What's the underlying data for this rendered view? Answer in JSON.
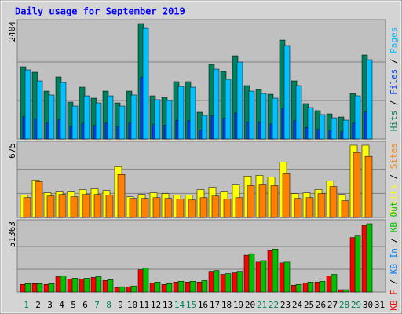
{
  "chart_data": {
    "type": "bar",
    "title": "Daily usage for September 2019",
    "categories": [
      "1",
      "2",
      "3",
      "4",
      "5",
      "6",
      "7",
      "8",
      "9",
      "10",
      "11",
      "12",
      "13",
      "14",
      "15",
      "16",
      "17",
      "18",
      "19",
      "20",
      "21",
      "22",
      "23",
      "24",
      "25",
      "26",
      "27",
      "28",
      "29",
      "30",
      "31"
    ],
    "category_colors": [
      "#00805c",
      "#000000",
      "#000000",
      "#000000",
      "#000000",
      "#000000",
      "#00805c",
      "#00805c",
      "#000000",
      "#000000",
      "#000000",
      "#000000",
      "#000000",
      "#00805c",
      "#00805c",
      "#000000",
      "#000000",
      "#000000",
      "#000000",
      "#000000",
      "#00805c",
      "#00805c",
      "#000000",
      "#000000",
      "#000000",
      "#000000",
      "#000000",
      "#00805c",
      "#00805c",
      "#000000",
      "#000000"
    ],
    "legend_separator": " / ",
    "panels": [
      {
        "ylim": [
          0,
          2404
        ],
        "yticks": [
          2404
        ],
        "draw_reversed": true,
        "series": [
          {
            "name": "Pages",
            "color": "#00c0ff",
            "values": [
              1439,
              1210,
              916,
              1177,
              687,
              899,
              752,
              899,
              687,
              916,
              2305,
              818,
              801,
              1095,
              1079,
              491,
              1455,
              1243,
              1602,
              997,
              948,
              850,
              1946,
              1112,
              654,
              507,
              441,
              392,
              899,
              1651,
              null
            ]
          },
          {
            "name": "Files",
            "color": "#0040ff",
            "values": [
              460,
              420,
              330,
              400,
              260,
              320,
              280,
              330,
              260,
              330,
              1290,
              300,
              290,
              390,
              380,
              190,
              480,
              430,
              540,
              350,
              340,
              310,
              640,
              380,
              240,
              200,
              180,
              150,
              330,
              560,
              null
            ]
          },
          {
            "name": "Hits",
            "color": "#00805c",
            "values": [
              1504,
              1390,
              997,
              1292,
              768,
              1079,
              850,
              997,
              752,
              997,
              2404,
              899,
              867,
              1194,
              1194,
              556,
              1553,
              1406,
              1733,
              1112,
              1030,
              932,
              2060,
              1210,
              736,
              589,
              523,
              458,
              948,
              1750,
              null
            ]
          }
        ]
      },
      {
        "ylim": [
          0,
          675
        ],
        "yticks": [
          675
        ],
        "draw_reversed": true,
        "series": [
          {
            "name": "Sites",
            "color": "#ff8000",
            "values": [
              185,
              334,
              200,
              215,
              193,
              215,
              215,
              208,
              401,
              178,
              178,
              185,
              178,
              171,
              163,
              185,
              200,
              171,
              185,
              297,
              304,
              297,
              408,
              178,
              185,
              223,
              289,
              156,
              608,
              571,
              null
            ]
          },
          {
            "name": "Visits",
            "color": "#ffff00",
            "values": [
              208,
              349,
              230,
              245,
              245,
              260,
              267,
              252,
              475,
              193,
              215,
              230,
              223,
              208,
              208,
              260,
              282,
              245,
              304,
              386,
              393,
              378,
              519,
              223,
              230,
              260,
              341,
              215,
              675,
              675,
              null
            ]
          }
        ]
      },
      {
        "ylim": [
          0,
          51363
        ],
        "yticks": [
          51363
        ],
        "draw_reversed": false,
        "series": [
          {
            "name": "KB F",
            "color": "#ff0000",
            "values": [
              5770,
              6347,
              5770,
              11540,
              9809,
              9809,
              10963,
              8655,
              3462,
              4039,
              16733,
              6924,
              5770,
              7501,
              7501,
              7501,
              15579,
              13271,
              14425,
              27696,
              22503,
              31158,
              21926,
              5193,
              6924,
              7501,
              12117,
              1731,
              40967,
              50198,
              null
            ]
          },
          {
            "name": "KB In",
            "color": "#0080ff",
            "values": [
              0,
              0,
              0,
              0,
              0,
              0,
              0,
              0,
              0,
              0,
              0,
              0,
              0,
              0,
              0,
              0,
              0,
              0,
              0,
              0,
              0,
              0,
              0,
              0,
              0,
              0,
              0,
              0,
              0,
              0,
              null
            ]
          },
          {
            "name": "KB Out",
            "color": "#00c000",
            "values": [
              6347,
              6347,
              6347,
              12117,
              10386,
              10386,
              11540,
              9232,
              4039,
              4616,
              17887,
              7501,
              6347,
              8078,
              8078,
              8655,
              16156,
              13848,
              15579,
              28850,
              23657,
              32312,
              22503,
              5770,
              7501,
              8078,
              13271,
              1731,
              42121,
              51363,
              null
            ]
          }
        ]
      }
    ]
  }
}
